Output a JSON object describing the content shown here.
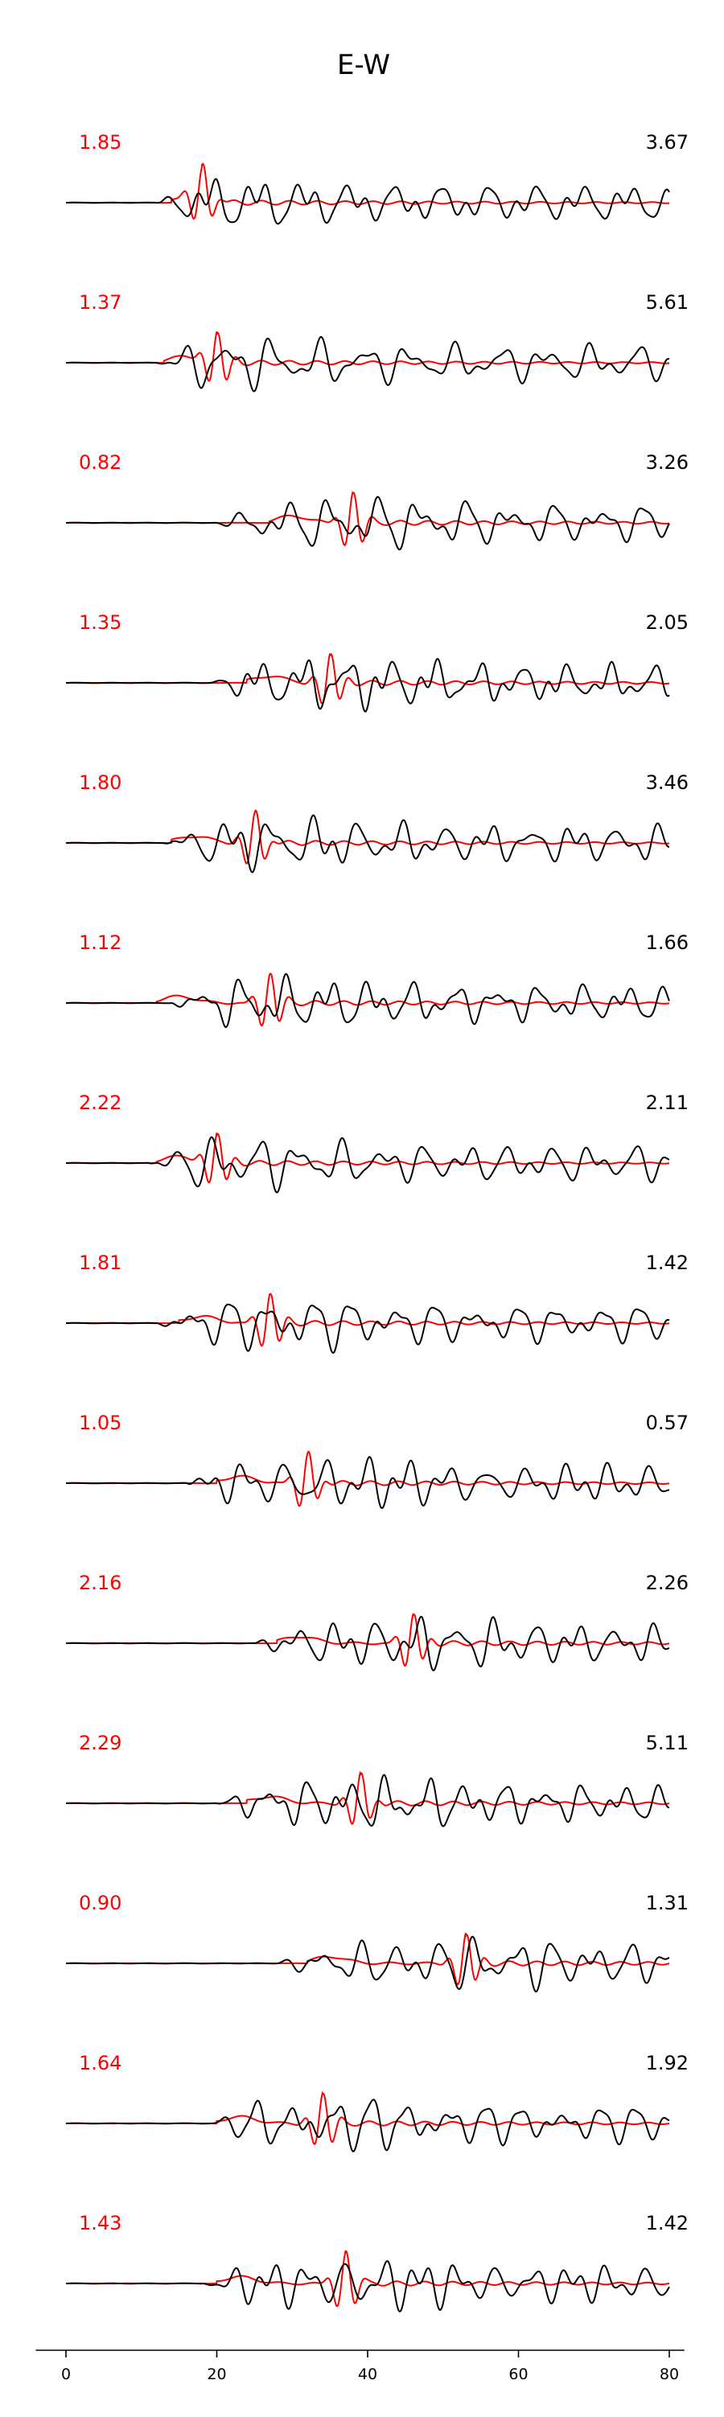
{
  "chart_data": {
    "type": "line",
    "title": "E-W",
    "xlabel": "",
    "ylabel": "",
    "xlim": [
      -4,
      82
    ],
    "xticks": [
      "0",
      "20",
      "40",
      "60",
      "80"
    ],
    "legend": "none",
    "grid": false,
    "series_colors": {
      "synthetic": "#ff0000",
      "observed": "#000000"
    },
    "traces": [
      {
        "amp_left": "1.85",
        "amp_right": "3.67",
        "onset_obs": 12.0,
        "onset_syn": 14.0,
        "pulse_syn": 18.0
      },
      {
        "amp_left": "1.37",
        "amp_right": "5.61",
        "onset_obs": 12.0,
        "onset_syn": 13.0,
        "pulse_syn": 20.0
      },
      {
        "amp_left": "0.82",
        "amp_right": "3.26",
        "onset_obs": 20.0,
        "onset_syn": 27.0,
        "pulse_syn": 38.0
      },
      {
        "amp_left": "1.35",
        "amp_right": "2.05",
        "onset_obs": 19.0,
        "onset_syn": 24.0,
        "pulse_syn": 35.0
      },
      {
        "amp_left": "1.80",
        "amp_right": "3.46",
        "onset_obs": 13.0,
        "onset_syn": 14.0,
        "pulse_syn": 25.0
      },
      {
        "amp_left": "1.12",
        "amp_right": "1.66",
        "onset_obs": 14.0,
        "onset_syn": 12.0,
        "pulse_syn": 27.0
      },
      {
        "amp_left": "2.22",
        "amp_right": "2.11",
        "onset_obs": 11.0,
        "onset_syn": 12.0,
        "pulse_syn": 20.0
      },
      {
        "amp_left": "1.81",
        "amp_right": "1.42",
        "onset_obs": 12.0,
        "onset_syn": 15.0,
        "pulse_syn": 27.0
      },
      {
        "amp_left": "1.05",
        "amp_right": "0.57",
        "onset_obs": 16.0,
        "onset_syn": 20.0,
        "pulse_syn": 32.0
      },
      {
        "amp_left": "2.16",
        "amp_right": "2.26",
        "onset_obs": 25.0,
        "onset_syn": 28.0,
        "pulse_syn": 46.0
      },
      {
        "amp_left": "2.29",
        "amp_right": "5.11",
        "onset_obs": 20.0,
        "onset_syn": 24.0,
        "pulse_syn": 39.0
      },
      {
        "amp_left": "0.90",
        "amp_right": "1.31",
        "onset_obs": 28.0,
        "onset_syn": 32.0,
        "pulse_syn": 53.0
      },
      {
        "amp_left": "1.64",
        "amp_right": "1.92",
        "onset_obs": 19.0,
        "onset_syn": 20.0,
        "pulse_syn": 34.0
      },
      {
        "amp_left": "1.43",
        "amp_right": "1.42",
        "onset_obs": 18.0,
        "onset_syn": 20.0,
        "pulse_syn": 37.0
      }
    ]
  }
}
